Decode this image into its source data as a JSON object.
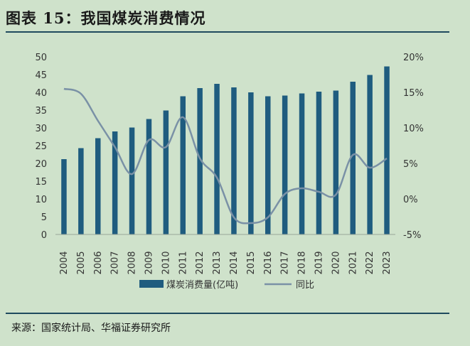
{
  "header": {
    "title": "图表 15：我国煤炭消费情况"
  },
  "footer": {
    "source": "来源：国家统计局、华福证券研究所"
  },
  "colors": {
    "bar": "#1f5c7f",
    "line": "#7a91a6",
    "background": "#cfe2cb",
    "rule": "#1f4a5e"
  },
  "chart_data": {
    "type": "bar",
    "title": "",
    "xlabel": "",
    "ylabel": "",
    "categories": [
      "2004",
      "2005",
      "2006",
      "2007",
      "2008",
      "2009",
      "2010",
      "2011",
      "2012",
      "2013",
      "2014",
      "2015",
      "2016",
      "2017",
      "2018",
      "2019",
      "2020",
      "2021",
      "2022",
      "2023"
    ],
    "series": [
      {
        "name": "煤炭消费量(亿吨)",
        "type": "bar",
        "axis": "left",
        "values": [
          21.2,
          24.3,
          27.1,
          29.0,
          30.1,
          32.5,
          34.9,
          38.9,
          41.2,
          42.4,
          41.4,
          40.0,
          38.9,
          39.1,
          39.7,
          40.2,
          40.5,
          43.0,
          44.9,
          47.3
        ]
      },
      {
        "name": "同比",
        "type": "line",
        "axis": "right",
        "values": [
          15.5,
          14.8,
          11.0,
          7.3,
          3.5,
          8.3,
          7.3,
          11.5,
          5.7,
          3.0,
          -2.6,
          -3.4,
          -2.6,
          0.7,
          1.5,
          1.0,
          0.6,
          6.2,
          4.4,
          5.7
        ]
      }
    ],
    "y_left": {
      "ylim": [
        0,
        50
      ],
      "ticks": [
        "0",
        "5",
        "10",
        "15",
        "20",
        "25",
        "30",
        "35",
        "40",
        "45",
        "50"
      ]
    },
    "y_right": {
      "ylim": [
        -5,
        20
      ],
      "ticks": [
        "-5%",
        "0%",
        "5%",
        "10%",
        "15%",
        "20%"
      ]
    },
    "legend_position": "bottom",
    "grid": false
  }
}
